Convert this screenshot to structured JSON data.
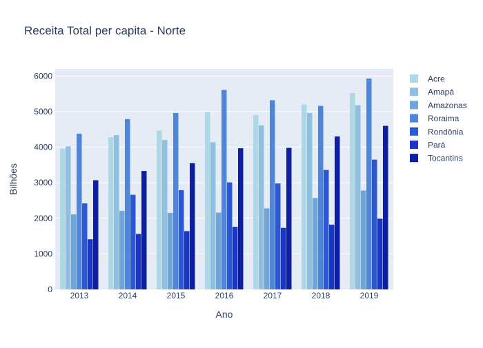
{
  "chart_data": {
    "type": "bar",
    "title": "Receita Total per capita - Norte",
    "xlabel": "Ano",
    "ylabel": "Bilhões",
    "ylim": [
      0,
      6200
    ],
    "yticks": [
      0,
      1000,
      2000,
      3000,
      4000,
      5000,
      6000
    ],
    "categories": [
      "2013",
      "2014",
      "2015",
      "2016",
      "2017",
      "2018",
      "2019"
    ],
    "grid": true,
    "legend_position": "right",
    "series": [
      {
        "name": "Acre",
        "color": "#add8e6",
        "values": [
          3960,
          4280,
          4470,
          4990,
          4900,
          5200,
          5520
        ]
      },
      {
        "name": "Amapá",
        "color": "#8fc0e0",
        "values": [
          4020,
          4340,
          4200,
          4140,
          4610,
          4960,
          5180
        ]
      },
      {
        "name": "Amazonas",
        "color": "#6ea6dc",
        "values": [
          2110,
          2210,
          2150,
          2160,
          2280,
          2570,
          2780
        ]
      },
      {
        "name": "Roraima",
        "color": "#4d86dc",
        "values": [
          4380,
          4790,
          4960,
          5610,
          5320,
          5160,
          5930
        ]
      },
      {
        "name": "Rondônia",
        "color": "#2b58d8",
        "values": [
          2420,
          2660,
          2790,
          3010,
          2980,
          3360,
          3650
        ]
      },
      {
        "name": "Pará",
        "color": "#1a36c8",
        "values": [
          1410,
          1560,
          1640,
          1760,
          1730,
          1820,
          1990
        ]
      },
      {
        "name": "Tocantins",
        "color": "#0d1ea6",
        "values": [
          3070,
          3330,
          3550,
          3970,
          3980,
          4300,
          4600
        ]
      }
    ]
  }
}
